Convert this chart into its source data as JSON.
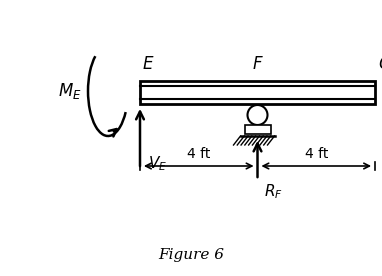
{
  "fig_width": 3.82,
  "fig_height": 2.76,
  "dpi": 100,
  "bg_color": "#ffffff",
  "label_E": "E",
  "label_F": "F",
  "label_G": "G",
  "label_ME": "$M_E$",
  "label_VE": "$V_E$",
  "label_RF": "$R_F$",
  "label_4ft_left": "4 ft",
  "label_4ft_right": "4 ft",
  "figure_label": "Figure 6"
}
